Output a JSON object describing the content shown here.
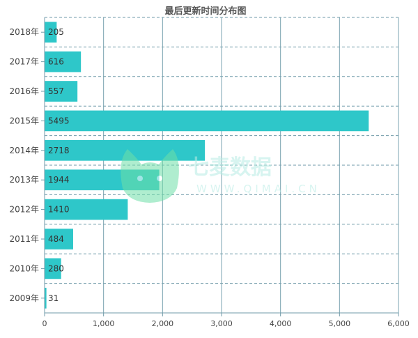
{
  "chart_data": {
    "type": "bar",
    "orientation": "horizontal",
    "title": "最后更新时间分布图",
    "categories": [
      "2018年",
      "2017年",
      "2016年",
      "2015年",
      "2014年",
      "2013年",
      "2012年",
      "2011年",
      "2010年",
      "2009年"
    ],
    "values": [
      205,
      616,
      557,
      5495,
      2718,
      1944,
      1410,
      484,
      280,
      31
    ],
    "xlim": [
      0,
      6000
    ],
    "x_ticks": [
      "0",
      "1,000",
      "2,000",
      "3,000",
      "4,000",
      "5,000",
      "6,000"
    ],
    "grid": true,
    "bar_color": "#2ec7c9"
  },
  "watermark": {
    "text": "七麦数据",
    "url": "WWW.QIMAI.CN"
  }
}
